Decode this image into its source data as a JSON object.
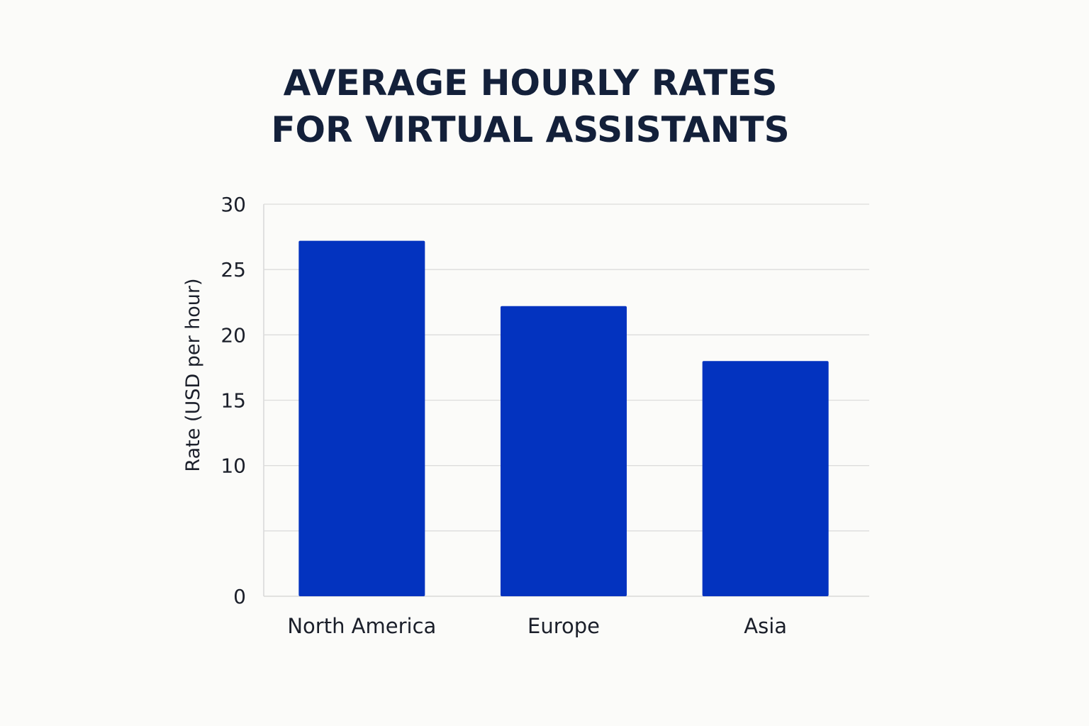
{
  "chart_data": {
    "type": "bar",
    "title": [
      "AVERAGE HOURLY RATES",
      "FOR VIRTUAL ASSISTANTS"
    ],
    "xlabel": "",
    "ylabel": "Rate (USD per hour)",
    "categories": [
      "North America",
      "Europe",
      "Asia"
    ],
    "values": [
      27.2,
      22.2,
      18
    ],
    "ylim": [
      0,
      30
    ],
    "yticks": [
      0,
      10,
      15,
      20,
      25,
      30
    ],
    "grid": true,
    "legend": "none",
    "bar_color": "#0333bf"
  }
}
